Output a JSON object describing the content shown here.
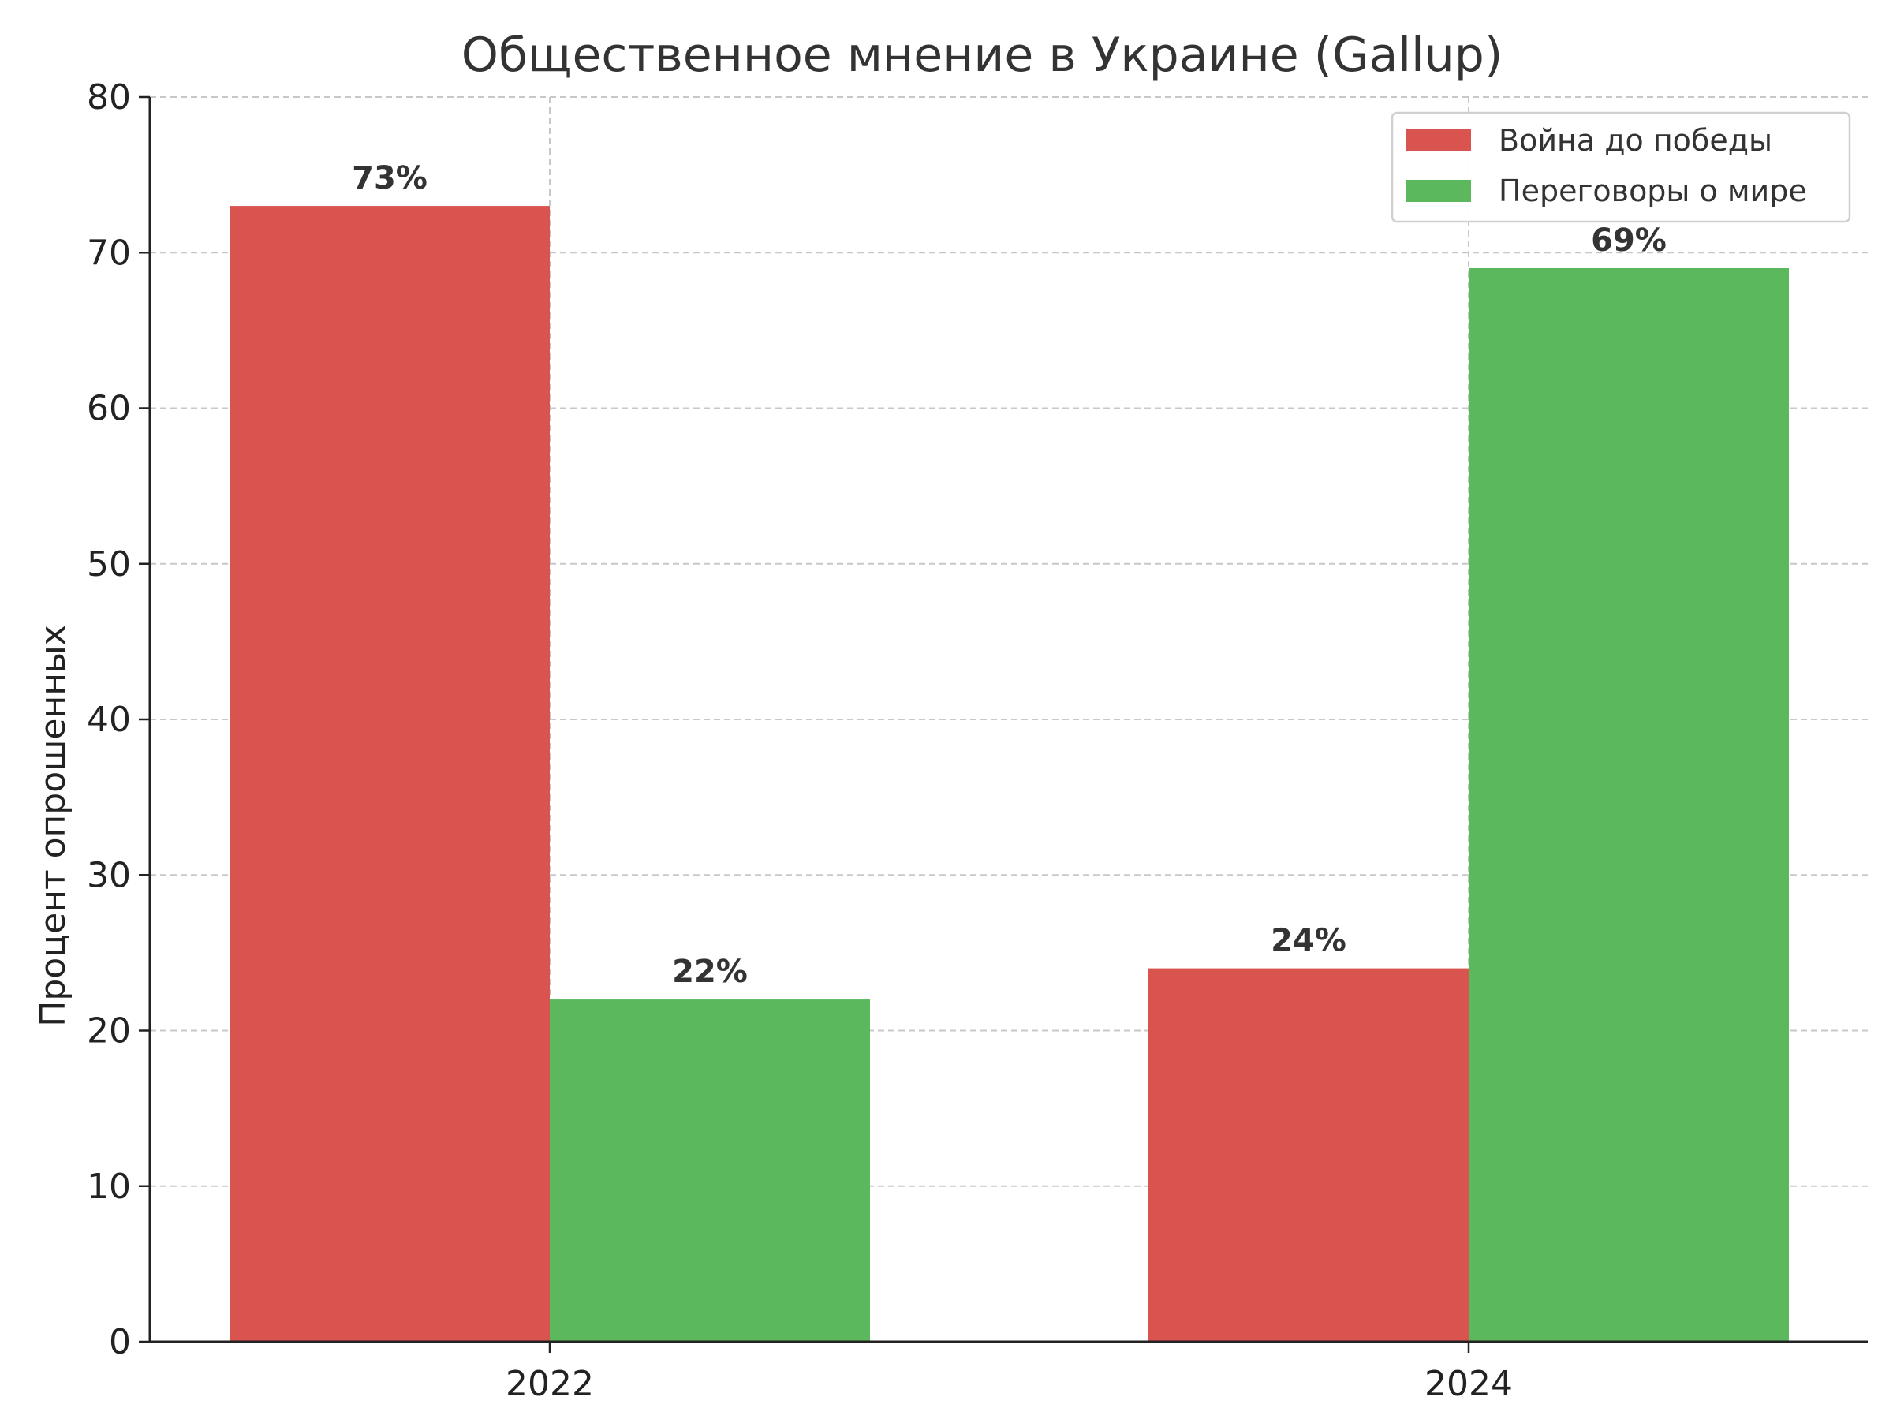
{
  "chart_data": {
    "type": "bar",
    "title": "Общественное мнение в Украине (Gallup)",
    "xlabel": "",
    "ylabel": "Процент опрошенных",
    "categories": [
      "2022",
      "2024"
    ],
    "series": [
      {
        "name": "Война до победы",
        "values": [
          73,
          24
        ],
        "color": "#d9534f"
      },
      {
        "name": "Переговоры о мире",
        "values": [
          22,
          69
        ],
        "color": "#5cb85c"
      }
    ],
    "data_labels": [
      [
        "73%",
        "24%"
      ],
      [
        "22%",
        "69%"
      ]
    ],
    "ylim": [
      0,
      80
    ],
    "yticks": [
      0,
      10,
      20,
      30,
      40,
      50,
      60,
      70,
      80
    ],
    "grid": true,
    "legend_position": "top-right"
  }
}
